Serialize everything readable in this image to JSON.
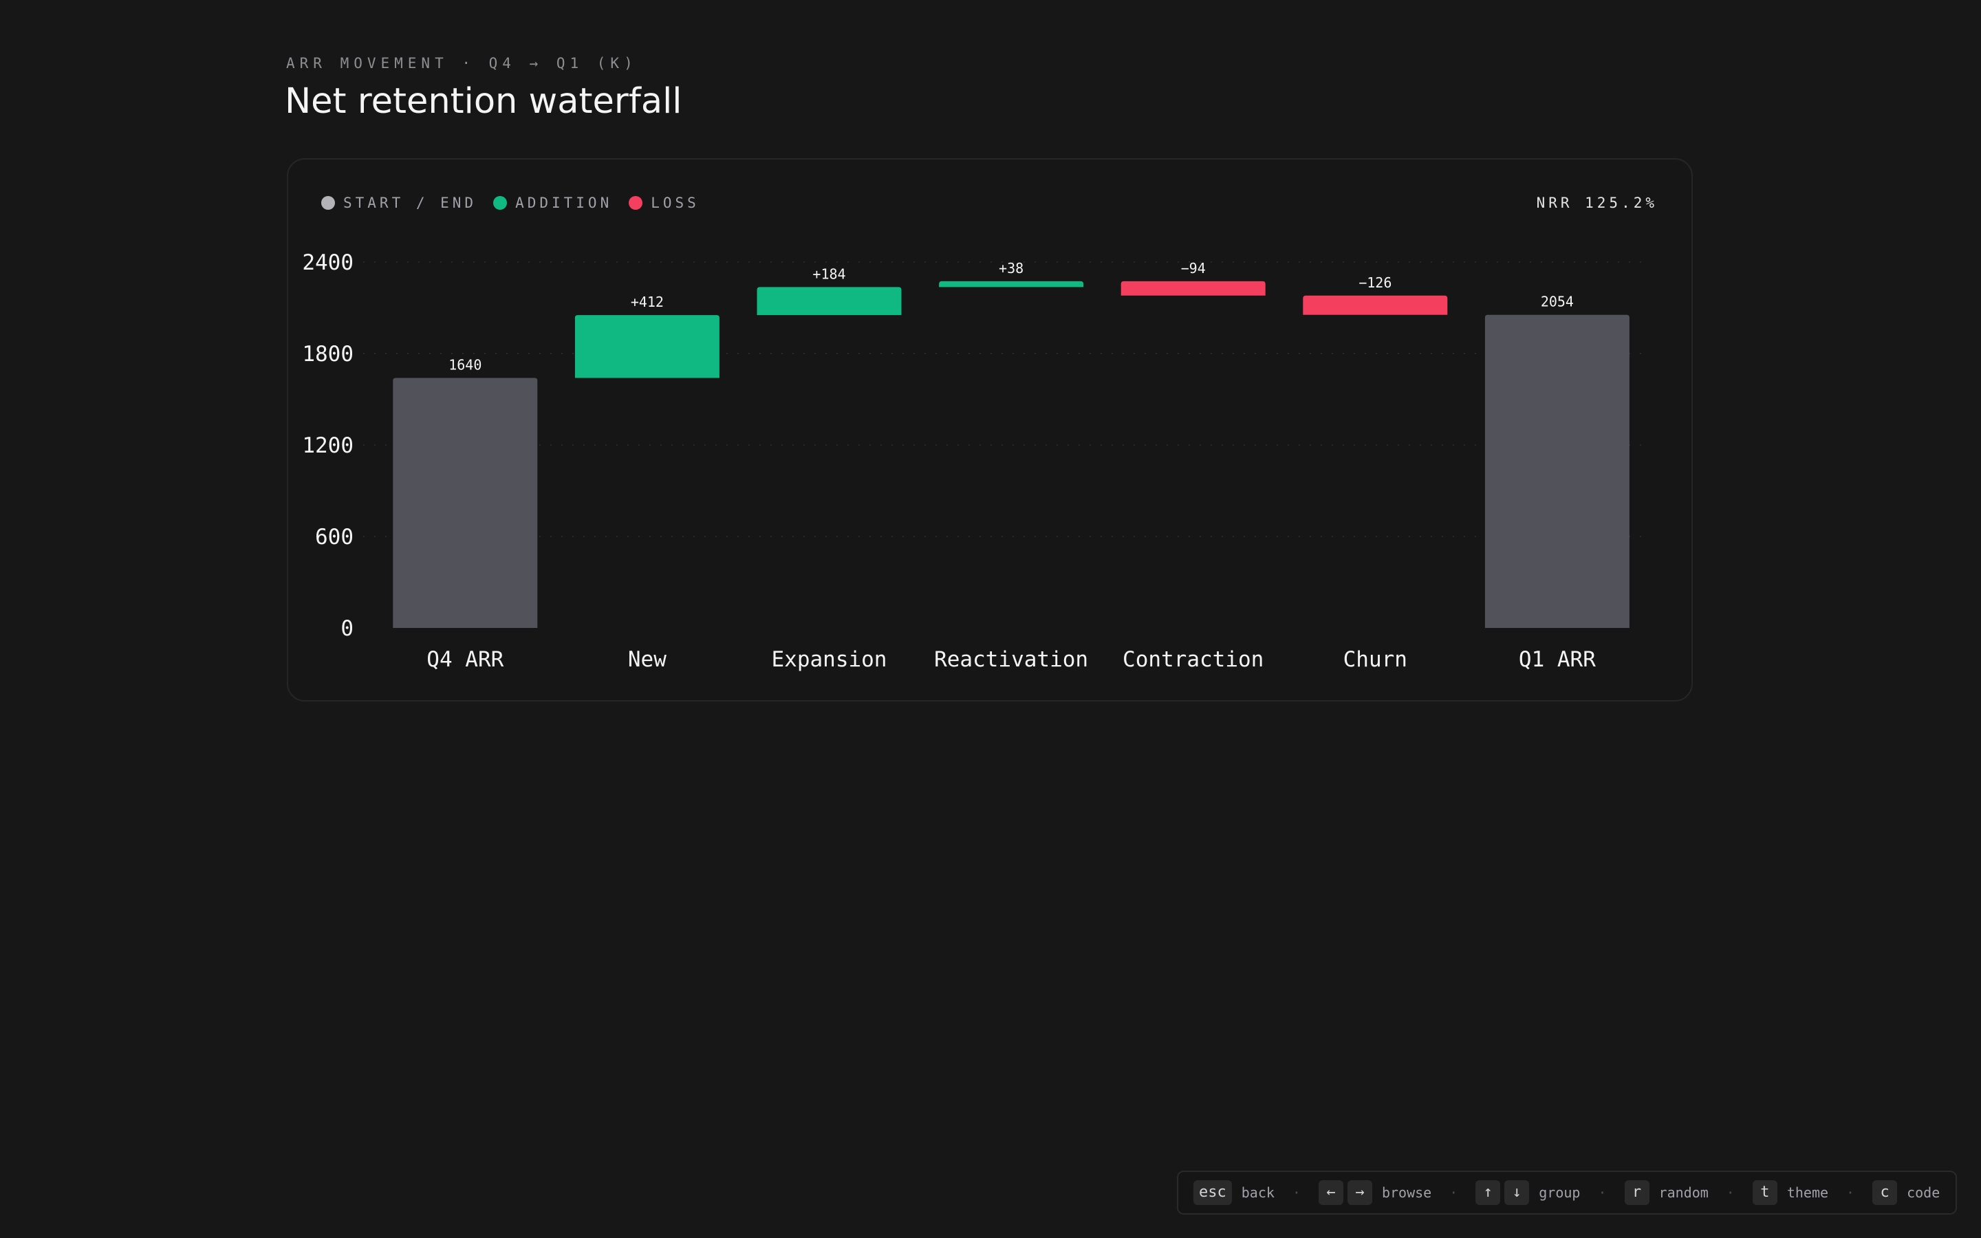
{
  "header": {
    "eyebrow": "ARR MOVEMENT · Q4 → Q1 (K)",
    "title": "Net retention waterfall"
  },
  "legend": [
    {
      "label": "START / END",
      "color": "#b4b4b8"
    },
    {
      "label": "ADDITION",
      "color": "#10b981"
    },
    {
      "label": "LOSS",
      "color": "#f43f5e"
    }
  ],
  "nrr_label": "NRR 125.2%",
  "colors": {
    "total": "#52525b",
    "addition": "#10b981",
    "loss": "#f43f5e"
  },
  "chart_data": {
    "type": "bar",
    "subtype": "waterfall",
    "title": "Net retention waterfall",
    "categories": [
      "Q4 ARR",
      "New",
      "Expansion",
      "Reactivation",
      "Contraction",
      "Churn",
      "Q1 ARR"
    ],
    "kinds": [
      "total",
      "addition",
      "addition",
      "addition",
      "loss",
      "loss",
      "total"
    ],
    "values": [
      1640,
      412,
      184,
      38,
      -94,
      -126,
      2054
    ],
    "data_labels": [
      "1640",
      "+412",
      "+184",
      "+38",
      "−94",
      "−126",
      "2054"
    ],
    "y_ticks": [
      0,
      600,
      1200,
      1800,
      2400
    ],
    "y_tick_labels": [
      "0",
      "600",
      "1200",
      "1800",
      "2400"
    ],
    "ylim": [
      0,
      2400
    ],
    "grid": true,
    "legend_position": "top-left"
  },
  "footer": {
    "hints": [
      {
        "keys": [
          "esc"
        ],
        "label": "back"
      },
      {
        "keys": [
          "←",
          "→"
        ],
        "label": "browse"
      },
      {
        "keys": [
          "↑",
          "↓"
        ],
        "label": "group"
      },
      {
        "keys": [
          "r"
        ],
        "label": "random"
      },
      {
        "keys": [
          "t"
        ],
        "label": "theme"
      },
      {
        "keys": [
          "c"
        ],
        "label": "code"
      }
    ]
  }
}
